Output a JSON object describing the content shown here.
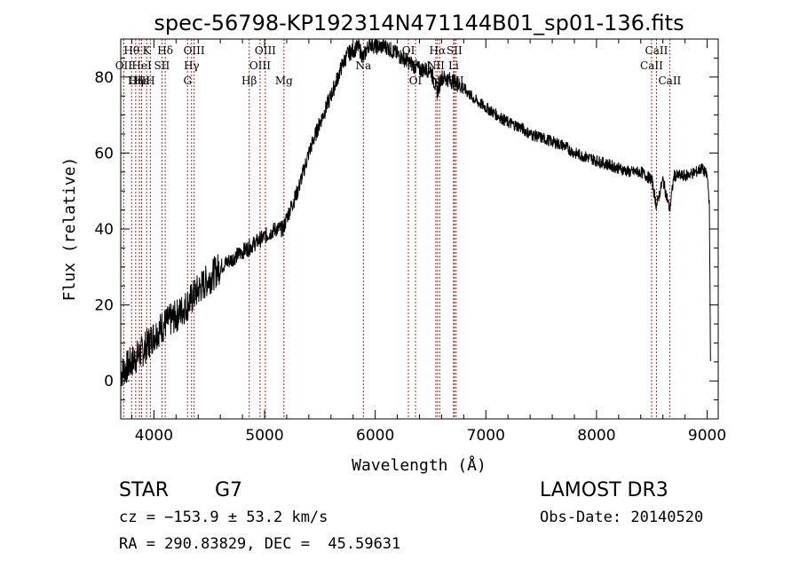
{
  "chart_data": {
    "type": "line",
    "title": "spec-56798-KP192314N471144B01_sp01-136.fits",
    "xlabel": "Wavelength (Å)",
    "ylabel": "Flux (relative)",
    "xlim": [
      3700,
      9100
    ],
    "ylim": [
      -10,
      90
    ],
    "x_ticks": [
      4000,
      5000,
      6000,
      7000,
      8000,
      9000
    ],
    "y_ticks": [
      0,
      20,
      40,
      60,
      80
    ],
    "series": [
      {
        "name": "spectrum",
        "x": [
          3700,
          3800,
          3900,
          4000,
          4100,
          4200,
          4300,
          4400,
          4500,
          4600,
          4700,
          4800,
          4850,
          4900,
          5000,
          5100,
          5170,
          5200,
          5300,
          5400,
          5500,
          5600,
          5700,
          5750,
          5800,
          5850,
          5890,
          5950,
          6000,
          6100,
          6200,
          6300,
          6400,
          6500,
          6563,
          6600,
          6700,
          6800,
          6900,
          7000,
          7100,
          7200,
          7300,
          7400,
          7500,
          7600,
          7700,
          7800,
          7900,
          8000,
          8100,
          8200,
          8300,
          8400,
          8500,
          8542,
          8600,
          8662,
          8700,
          8800,
          8900,
          8950,
          9000,
          9020,
          9030
        ],
        "y": [
          2,
          5,
          8,
          12,
          15,
          17,
          20,
          24,
          27,
          30,
          32,
          34,
          35,
          36,
          38,
          40,
          40,
          43,
          50,
          60,
          68,
          75,
          83,
          86,
          87,
          88,
          85,
          89,
          88,
          88,
          86,
          84,
          82,
          82,
          76,
          80,
          79,
          77,
          74,
          72,
          70,
          68,
          67,
          65,
          64,
          63,
          62,
          60,
          59,
          58,
          57,
          56,
          55,
          55,
          53,
          46,
          53,
          45,
          54,
          54,
          55,
          56,
          54,
          47,
          5
        ]
      }
    ],
    "spectral_lines": [
      {
        "label": "Hθ",
        "x": 3798,
        "row": 0
      },
      {
        "label": "OII",
        "x": 3727,
        "row": 1
      },
      {
        "label": "OIII",
        "x": 3869,
        "row": 2
      },
      {
        "label": "K",
        "x": 3934,
        "row": 0
      },
      {
        "label": "HeI",
        "x": 3889,
        "row": 1
      },
      {
        "label": "Hε",
        "x": 3889,
        "row": 2
      },
      {
        "label": "SII",
        "x": 4072,
        "row": 1
      },
      {
        "label": "Hη",
        "x": 3835,
        "row": 2
      },
      {
        "label": "H",
        "x": 3968,
        "row": 2
      },
      {
        "label": "Hδ",
        "x": 4102,
        "row": 0
      },
      {
        "label": "OIII",
        "x": 4363,
        "row": 0
      },
      {
        "label": "Hγ",
        "x": 4340,
        "row": 1
      },
      {
        "label": "G",
        "x": 4304,
        "row": 2
      },
      {
        "label": "OIII",
        "x": 5007,
        "row": 0
      },
      {
        "label": "OIII",
        "x": 4959,
        "row": 1
      },
      {
        "label": "Hβ",
        "x": 4861,
        "row": 2
      },
      {
        "label": "Mg",
        "x": 5175,
        "row": 2
      },
      {
        "label": "Na",
        "x": 5893,
        "row": 1
      },
      {
        "label": "OI",
        "x": 6300,
        "row": 0
      },
      {
        "label": "OI",
        "x": 6364,
        "row": 2
      },
      {
        "label": "Hα",
        "x": 6563,
        "row": 0
      },
      {
        "label": "SII",
        "x": 6716,
        "row": 0
      },
      {
        "label": "NII",
        "x": 6548,
        "row": 1
      },
      {
        "label": "Li",
        "x": 6708,
        "row": 1
      },
      {
        "label": "NII",
        "x": 6583,
        "row": 2
      },
      {
        "label": "SII",
        "x": 6731,
        "row": 2
      },
      {
        "label": "CaII",
        "x": 8542,
        "row": 0
      },
      {
        "label": "CaII",
        "x": 8498,
        "row": 1
      },
      {
        "label": "CaII",
        "x": 8662,
        "row": 2
      }
    ]
  },
  "footer": {
    "object_type": "STAR",
    "subclass": "G7",
    "survey": "LAMOST DR3",
    "cz": "cz = −153.9 ± 53.2 km/s",
    "obs_date": "Obs-Date: 20140520",
    "coords": "RA = 290.83829, DEC =  45.59631"
  },
  "colors": {
    "spectrum": "#000000",
    "line_marker": "#b22222",
    "axes": "#000000"
  }
}
